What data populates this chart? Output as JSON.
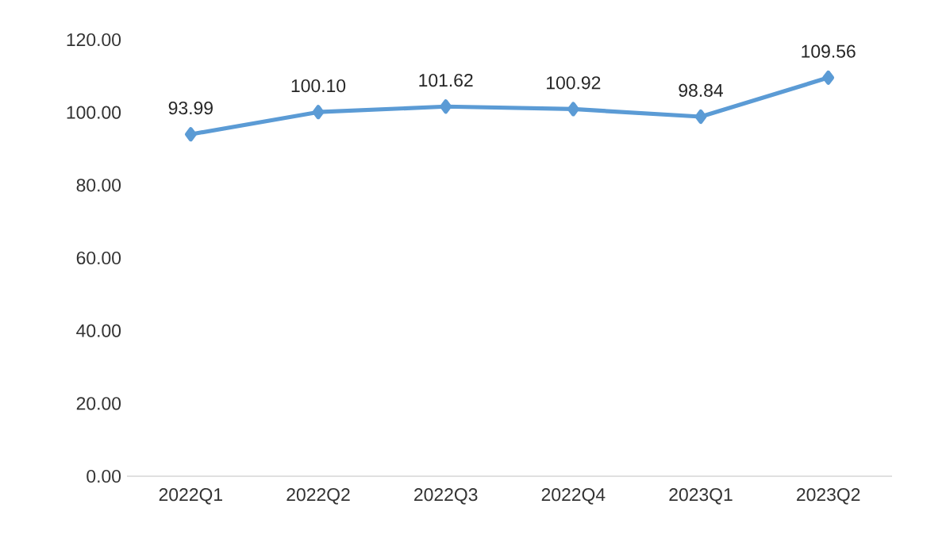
{
  "chart_data": {
    "type": "line",
    "categories": [
      "2022Q1",
      "2022Q2",
      "2022Q3",
      "2022Q4",
      "2023Q1",
      "2023Q2"
    ],
    "values": [
      93.99,
      100.1,
      101.62,
      100.92,
      98.84,
      109.56
    ],
    "value_labels": [
      "93.99",
      "100.10",
      "101.62",
      "100.92",
      "98.84",
      "109.56"
    ],
    "color": "#5b9bd5",
    "marker": "diamond",
    "line_style": "solid",
    "ylim": [
      0,
      120
    ],
    "yticks": [
      {
        "value": 0,
        "label": "0.00"
      },
      {
        "value": 20,
        "label": "20.00"
      },
      {
        "value": 40,
        "label": "40.00"
      },
      {
        "value": 60,
        "label": "60.00"
      },
      {
        "value": 80,
        "label": "80.00"
      },
      {
        "value": 100,
        "label": "100.00"
      },
      {
        "value": 120,
        "label": "120.00"
      }
    ]
  }
}
